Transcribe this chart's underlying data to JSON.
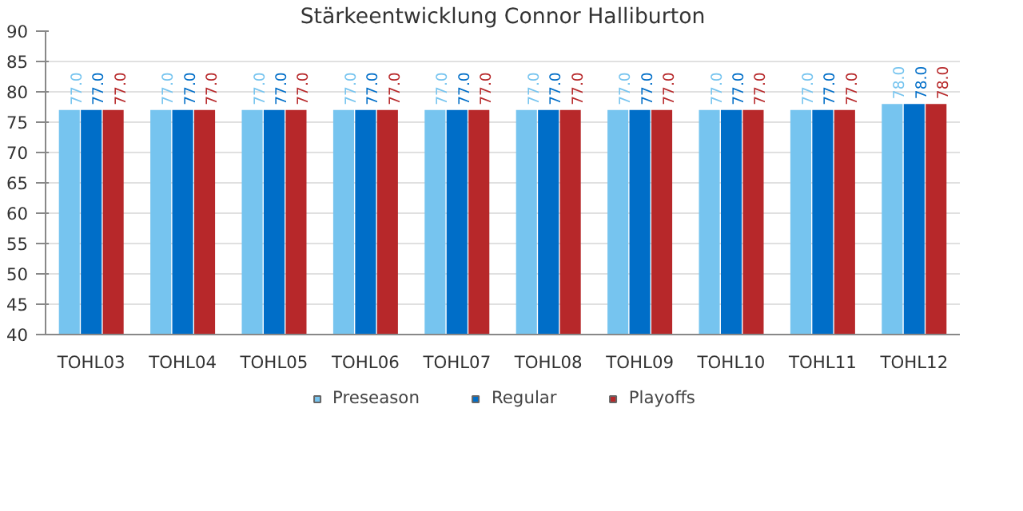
{
  "chart_data": {
    "type": "bar",
    "title": "Stärkeentwicklung Connor Halliburton",
    "categories": [
      "TOHL03",
      "TOHL04",
      "TOHL05",
      "TOHL06",
      "TOHL07",
      "TOHL08",
      "TOHL09",
      "TOHL10",
      "TOHL11",
      "TOHL12"
    ],
    "series": [
      {
        "name": "Preseason",
        "color": "#76c4ef",
        "values": [
          77,
          77,
          77,
          77,
          77,
          77,
          77,
          77,
          77,
          78
        ],
        "value_labels": [
          "77.0",
          "77.0",
          "77.0",
          "77.0",
          "77.0",
          "77.0",
          "77.0",
          "77.0",
          "77.0",
          "78.0"
        ]
      },
      {
        "name": "Regular",
        "color": "#006ec8",
        "values": [
          77,
          77,
          77,
          77,
          77,
          77,
          77,
          77,
          77,
          78
        ],
        "value_labels": [
          "77.0",
          "77.0",
          "77.0",
          "77.0",
          "77.0",
          "77.0",
          "77.0",
          "77.0",
          "77.0",
          "78.0"
        ]
      },
      {
        "name": "Playoffs",
        "color": "#b7282a",
        "values": [
          77,
          77,
          77,
          77,
          77,
          77,
          77,
          77,
          77,
          78
        ],
        "value_labels": [
          "77.0",
          "77.0",
          "77.0",
          "77.0",
          "77.0",
          "77.0",
          "77.0",
          "77.0",
          "77.0",
          "78.0"
        ]
      }
    ],
    "ylim": [
      40,
      90
    ],
    "yticks": [
      40,
      45,
      50,
      55,
      60,
      65,
      70,
      75,
      80,
      85,
      90
    ],
    "grid": "y",
    "legend": "bottom"
  }
}
